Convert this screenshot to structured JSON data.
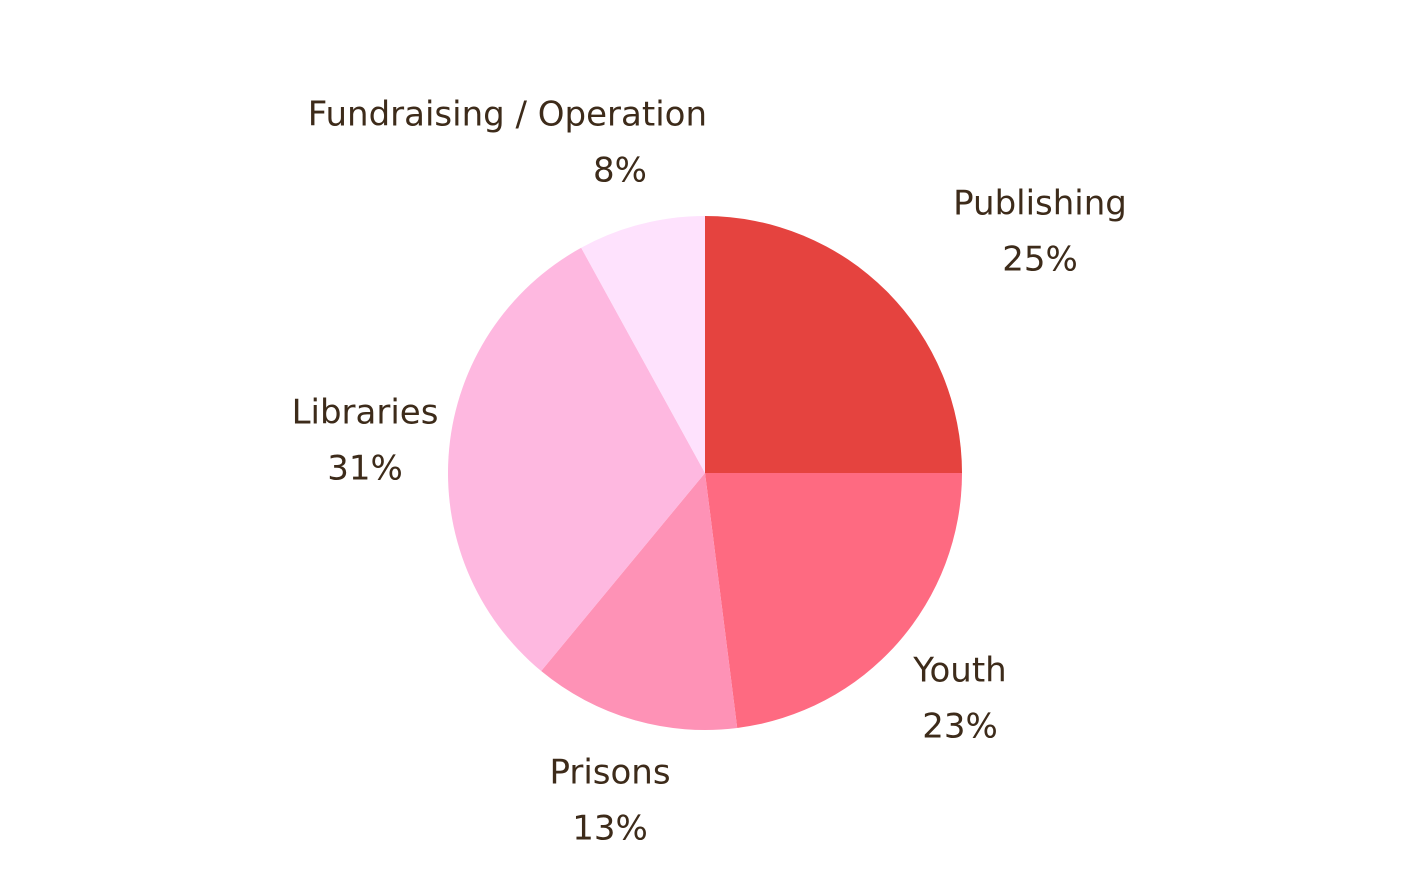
{
  "chart_data": {
    "type": "pie",
    "categories": [
      "Publishing",
      "Youth",
      "Prisons",
      "Libraries",
      "Fundraising / Operation"
    ],
    "values": [
      25,
      23,
      13,
      31,
      8
    ],
    "value_labels": [
      "25%",
      "23%",
      "13%",
      "31%",
      "8%"
    ],
    "colors": [
      "#e5433f",
      "#fe6a81",
      "#fe92b6",
      "#feb8e0",
      "#fee2fd"
    ]
  }
}
